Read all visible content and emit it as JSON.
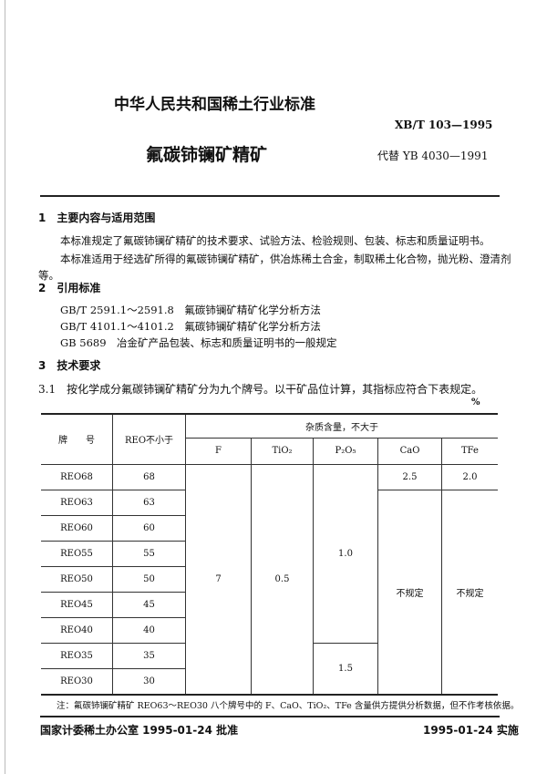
{
  "header": {
    "org": "中华人民共和国稀土行业标准",
    "code": "XB/T 103—1995",
    "title": "氟碳铈镧矿精矿",
    "replaces": "代替 YB 4030—1991"
  },
  "section1": {
    "heading": "1　主要内容与适用范围",
    "p1": "本标准规定了氟碳铈镧矿精矿的技术要求、试验方法、检验规则、包装、标志和质量证明书。",
    "p2": "本标准适用于经选矿所得的氟碳铈镧矿精矿，供冶炼稀土合金，制取稀土化合物，抛光粉、澄清剂",
    "p2_cont": "等。"
  },
  "section2": {
    "heading": "2　引用标准",
    "refs": [
      "GB/T 2591.1～2591.8　氟碳铈镧矿精矿化学分析方法",
      "GB/T 4101.1～4101.2　氟碳铈镧矿精矿化学分析方法",
      "GB 5689　冶金矿产品包装、标志和质量证明书的一般规定"
    ]
  },
  "section3": {
    "heading": "3　技术要求",
    "p31": "3.1　按化学成分氟碳铈镧矿精矿分为九个牌号。以干矿品位计算，其指标应符合下表规定。",
    "unit": "%"
  },
  "table": {
    "col_grade": "牌　　号",
    "col_reo": "REO不小于",
    "col_impurity": "杂质含量，不大于",
    "sub": [
      "F",
      "TiO₂",
      "P₂O₅",
      "CaO",
      "TFe"
    ],
    "rows": [
      {
        "grade": "REO68",
        "reo": "68"
      },
      {
        "grade": "REO63",
        "reo": "63"
      },
      {
        "grade": "REO60",
        "reo": "60"
      },
      {
        "grade": "REO55",
        "reo": "55"
      },
      {
        "grade": "REO50",
        "reo": "50"
      },
      {
        "grade": "REO45",
        "reo": "45"
      },
      {
        "grade": "REO40",
        "reo": "40"
      },
      {
        "grade": "REO35",
        "reo": "35"
      },
      {
        "grade": "REO30",
        "reo": "30"
      }
    ],
    "f": "7",
    "tio2": "0.5",
    "p2o5_a": "1.0",
    "p2o5_b": "1.5",
    "cao_first": "2.5",
    "tfe_first": "2.0",
    "cao_rest": "不规定",
    "tfe_rest": "不规定"
  },
  "note": "注：氟碳铈镧矿精矿 REO63～REO30 八个牌号中的 F、CaO、TiO₂、TFe 含量供方提供分析数据，但不作考核依据。",
  "footer": {
    "approved": "国家计委稀土办公室 1995-01-24 批准",
    "effective": "1995-01-24 实施"
  }
}
